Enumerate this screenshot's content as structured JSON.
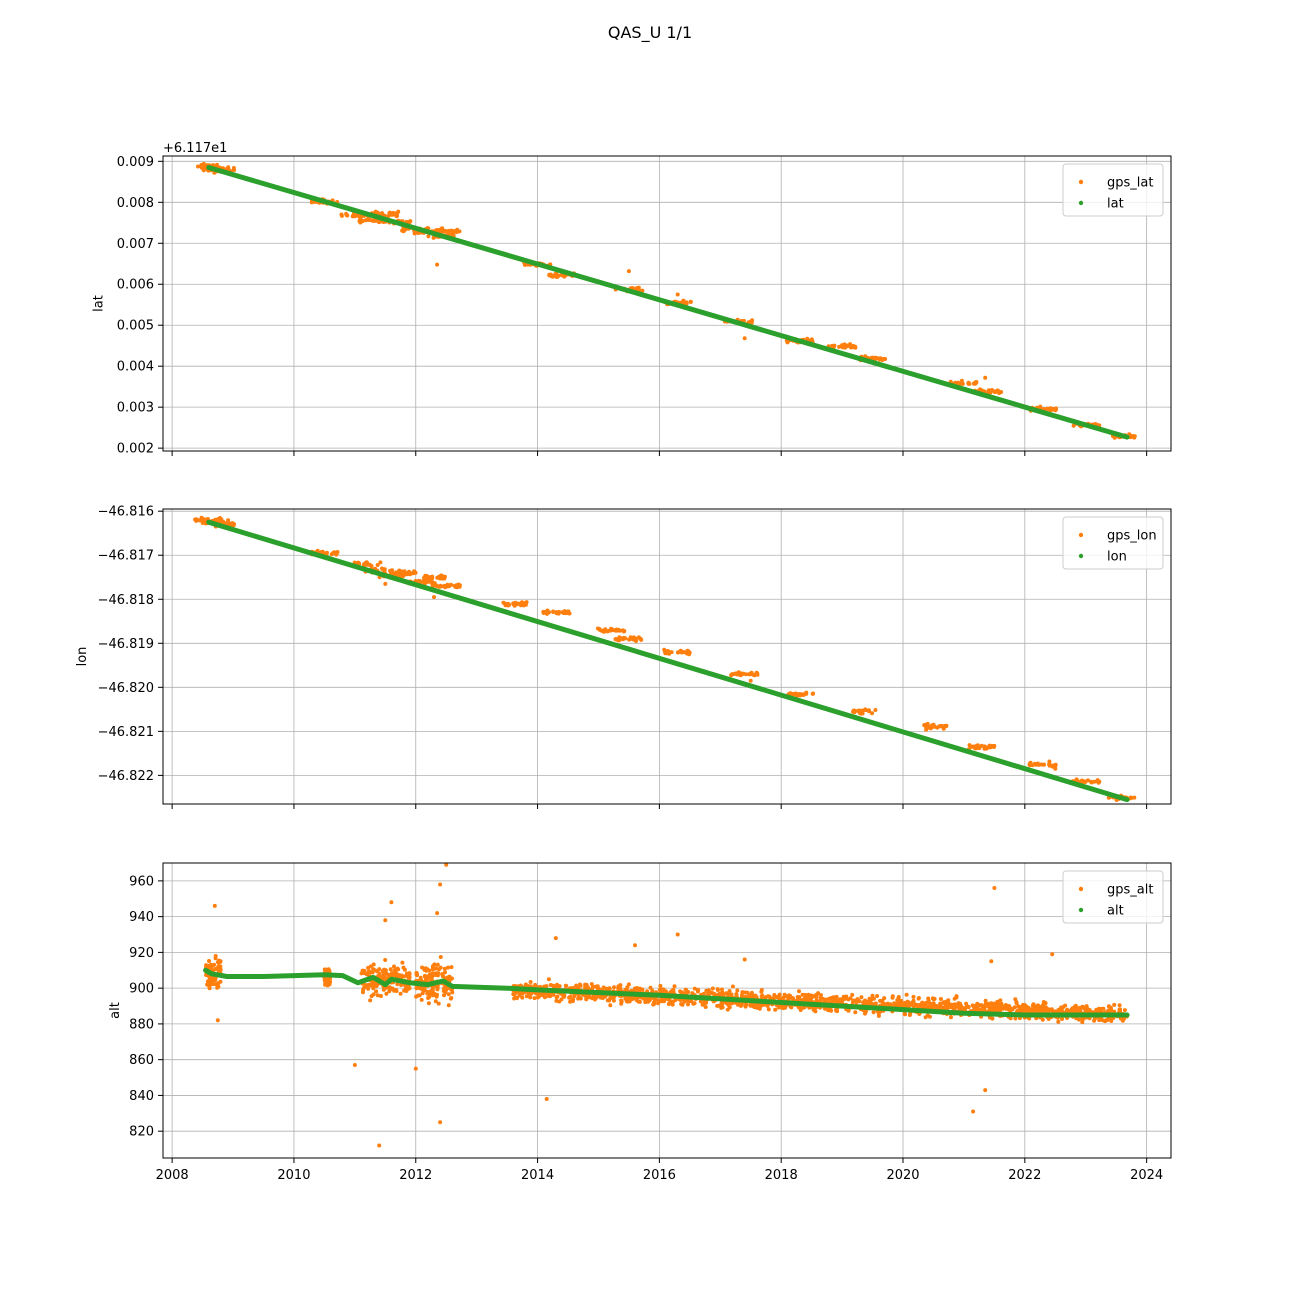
{
  "figure": {
    "title": "QAS_U 1/1"
  },
  "colors": {
    "gps": "#ff7f0e",
    "fit": "#2ca02c",
    "grid": "#b0b0b0",
    "axis": "#000000"
  },
  "chart_data": [
    {
      "type": "scatter",
      "ylabel": "lat",
      "offset_label": "+6.117e1",
      "legend": "top-right",
      "grid": true,
      "xlim": [
        2007.85,
        2024.4
      ],
      "ylim": [
        0.00193,
        0.00913
      ],
      "xticks": [
        2008,
        2010,
        2012,
        2014,
        2016,
        2018,
        2020,
        2022,
        2024
      ],
      "show_xtick_labels": false,
      "yticks": [
        0.002,
        0.003,
        0.004,
        0.005,
        0.006,
        0.007,
        0.008,
        0.009
      ],
      "ytick_labels": [
        "0.002",
        "0.003",
        "0.004",
        "0.005",
        "0.006",
        "0.007",
        "0.008",
        "0.009"
      ],
      "series": [
        {
          "name": "gps_lat",
          "x": [
            2008.6,
            2008.7,
            2008.8,
            2010.5,
            2011.0,
            2011.3,
            2011.5,
            2011.7,
            2012.0,
            2012.2,
            2012.4,
            2012.5,
            2014.0,
            2014.4,
            2015.5,
            2016.3,
            2017.3,
            2018.3,
            2019.0,
            2019.5,
            2021.0,
            2021.4,
            2022.3,
            2023.0,
            2023.6
          ],
          "y": [
            0.00888,
            0.00882,
            0.00878,
            0.00802,
            0.00768,
            0.00756,
            0.00772,
            0.00752,
            0.00735,
            0.00728,
            0.00718,
            0.0073,
            0.00648,
            0.00622,
            0.00588,
            0.00555,
            0.00508,
            0.00462,
            0.00448,
            0.00418,
            0.00358,
            0.00338,
            0.00295,
            0.00258,
            0.0023
          ],
          "outliers": {
            "x": [
              2011.4,
              2012.35,
              2015.5,
              2016.3,
              2017.4,
              2021.35
            ],
            "y": [
              0.00752,
              0.00648,
              0.00632,
              0.00575,
              0.00468,
              0.00372
            ]
          }
        },
        {
          "name": "lat",
          "x": [
            2008.6,
            2023.68
          ],
          "y": [
            0.00885,
            0.00227
          ]
        }
      ]
    },
    {
      "type": "scatter",
      "ylabel": "lon",
      "legend": "top-right",
      "grid": true,
      "xlim": [
        2007.85,
        2024.4
      ],
      "ylim": [
        -46.82265,
        -46.81595
      ],
      "xticks": [
        2008,
        2010,
        2012,
        2014,
        2016,
        2018,
        2020,
        2022,
        2024
      ],
      "show_xtick_labels": false,
      "yticks": [
        -46.822,
        -46.821,
        -46.82,
        -46.819,
        -46.818,
        -46.817,
        -46.816
      ],
      "ytick_labels": [
        "−46.822",
        "−46.821",
        "−46.820",
        "−46.819",
        "−46.818",
        "−46.817",
        "−46.816"
      ],
      "series": [
        {
          "name": "gps_lon",
          "x": [
            2008.6,
            2008.7,
            2008.8,
            2010.5,
            2011.2,
            2011.4,
            2011.6,
            2011.8,
            2012.1,
            2012.3,
            2012.5,
            2013.6,
            2014.3,
            2015.2,
            2015.5,
            2016.3,
            2017.4,
            2018.3,
            2019.4,
            2020.5,
            2021.3,
            2022.3,
            2023.0,
            2023.6
          ],
          "y": [
            -46.8162,
            -46.81625,
            -46.8163,
            -46.81695,
            -46.8172,
            -46.81735,
            -46.81745,
            -46.8174,
            -46.8176,
            -46.8175,
            -46.8177,
            -46.8181,
            -46.8183,
            -46.8187,
            -46.8189,
            -46.8192,
            -46.8197,
            -46.82015,
            -46.82055,
            -46.8209,
            -46.82135,
            -46.82175,
            -46.82215,
            -46.8225
          ],
          "outliers": {
            "x": [
              2011.5,
              2012.3,
              2016.2,
              2017.5,
              2020.5,
              2022.5
            ],
            "y": [
              -46.81765,
              -46.81795,
              -46.8192,
              -46.81985,
              -46.82085,
              -46.82185
            ]
          }
        },
        {
          "name": "lon",
          "x": [
            2008.6,
            2023.68
          ],
          "y": [
            -46.81625,
            -46.82255
          ]
        }
      ]
    },
    {
      "type": "scatter",
      "ylabel": "alt",
      "legend": "top-right",
      "grid": true,
      "xlim": [
        2007.85,
        2024.4
      ],
      "ylim": [
        805,
        970
      ],
      "xticks": [
        2008,
        2010,
        2012,
        2014,
        2016,
        2018,
        2020,
        2022,
        2024
      ],
      "show_xtick_labels": true,
      "xtick_labels": [
        "2008",
        "2010",
        "2012",
        "2014",
        "2016",
        "2018",
        "2020",
        "2022",
        "2024"
      ],
      "yticks": [
        820,
        840,
        860,
        880,
        900,
        920,
        940,
        960
      ],
      "ytick_labels": [
        "820",
        "840",
        "860",
        "880",
        "900",
        "920",
        "940",
        "960"
      ],
      "series": [
        {
          "name": "gps_alt",
          "clusters": [
            {
              "x0": 2008.55,
              "x1": 2008.8,
              "center": 909,
              "spread": 8
            },
            {
              "x0": 2010.5,
              "x1": 2010.6,
              "center": 906,
              "spread": 5
            },
            {
              "x0": 2011.1,
              "x1": 2011.9,
              "center": 904,
              "spread": 9
            },
            {
              "x0": 2012.0,
              "x1": 2012.6,
              "center": 903,
              "spread": 11
            },
            {
              "x0": 2013.6,
              "x1": 2023.68,
              "center_start": 899,
              "center_end": 885,
              "spread": 5
            }
          ],
          "outliers": {
            "x": [
              2008.7,
              2008.75,
              2011.0,
              2011.4,
              2011.5,
              2011.6,
              2012.0,
              2012.35,
              2012.4,
              2012.5,
              2012.4,
              2014.15,
              2014.3,
              2016.3,
              2021.15,
              2021.35,
              2021.45,
              2021.5,
              2022.45,
              2015.6,
              2017.4
            ],
            "y": [
              946,
              882,
              857,
              812,
              938,
              948,
              855,
              942,
              825,
              969,
              958,
              838,
              928,
              930,
              831,
              843,
              915,
              956,
              919,
              924,
              916
            ]
          }
        },
        {
          "name": "alt",
          "x": [
            2008.55,
            2008.65,
            2008.9,
            2009.5,
            2010.0,
            2010.5,
            2010.8,
            2011.05,
            2011.3,
            2011.5,
            2011.6,
            2011.9,
            2012.2,
            2012.45,
            2012.6,
            2013.5,
            2014.0,
            2016.0,
            2018.0,
            2020.0,
            2021.0,
            2022.0,
            2023.68
          ],
          "y": [
            910,
            908,
            906.5,
            906.5,
            907,
            907.5,
            907,
            903,
            906,
            902,
            905,
            903,
            902,
            904,
            901,
            900,
            899,
            896,
            892,
            888,
            886,
            885,
            885
          ]
        }
      ]
    }
  ]
}
